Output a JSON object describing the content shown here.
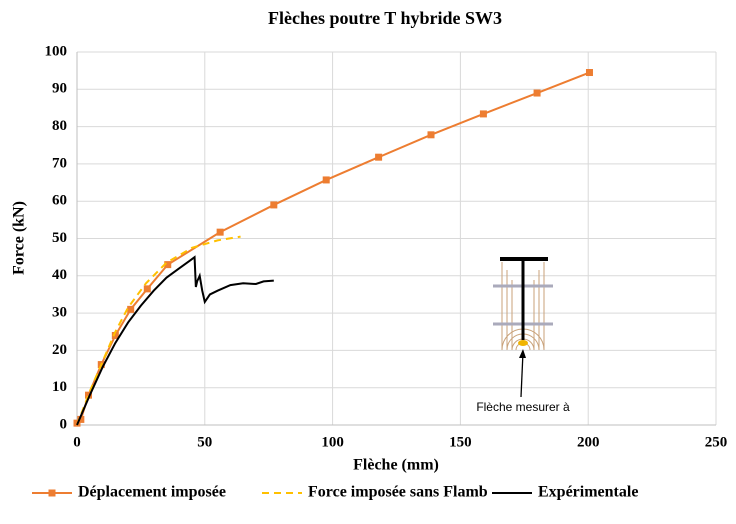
{
  "chart_data": {
    "type": "line",
    "title": "Flèches poutre T hybride SW3",
    "xlabel": "Flèche (mm)",
    "ylabel": "Force (kN)",
    "xlim": [
      0,
      250
    ],
    "ylim": [
      0,
      100
    ],
    "xticks": [
      0,
      50,
      100,
      150,
      200,
      250
    ],
    "yticks": [
      0,
      10,
      20,
      30,
      40,
      50,
      60,
      70,
      80,
      90,
      100
    ],
    "grid": true,
    "legend": "bottom",
    "annotation": "Flèche mesurer à",
    "series": [
      {
        "name": "Déplacement imposée",
        "color": "#ed7d31",
        "marker": "square",
        "dash": "solid",
        "x": [
          0,
          1.5,
          4.5,
          9.5,
          15,
          21,
          27.5,
          35.5,
          56,
          77,
          97.5,
          118,
          138.5,
          159,
          180,
          200.5
        ],
        "values": [
          0.5,
          1.5,
          8,
          16.2,
          24,
          31,
          36.5,
          43,
          51.7,
          59,
          65.7,
          71.8,
          77.8,
          83.4,
          89,
          94.5
        ]
      },
      {
        "name": "Force imposée sans Flamb",
        "color": "#ffc000",
        "marker": "none",
        "dash": "dashed",
        "x": [
          0,
          5,
          10,
          15,
          20,
          27,
          35,
          45,
          55,
          64
        ],
        "values": [
          0,
          9,
          17,
          25,
          31.5,
          38,
          43.5,
          47.5,
          49.5,
          50.5
        ]
      },
      {
        "name": "Expérimentale",
        "color": "#000000",
        "marker": "none",
        "dash": "solid",
        "x": [
          0,
          5,
          10,
          15,
          20,
          25,
          30,
          35,
          40,
          44,
          46,
          46.5,
          47,
          48,
          49,
          50,
          52,
          55,
          60,
          65,
          70,
          73,
          77
        ],
        "values": [
          0,
          8,
          15.5,
          22,
          27.5,
          32,
          36,
          39.5,
          42,
          44,
          45,
          37,
          38.5,
          40,
          36,
          33,
          35,
          36,
          37.5,
          38,
          37.8,
          38.5,
          38.7
        ]
      }
    ]
  }
}
